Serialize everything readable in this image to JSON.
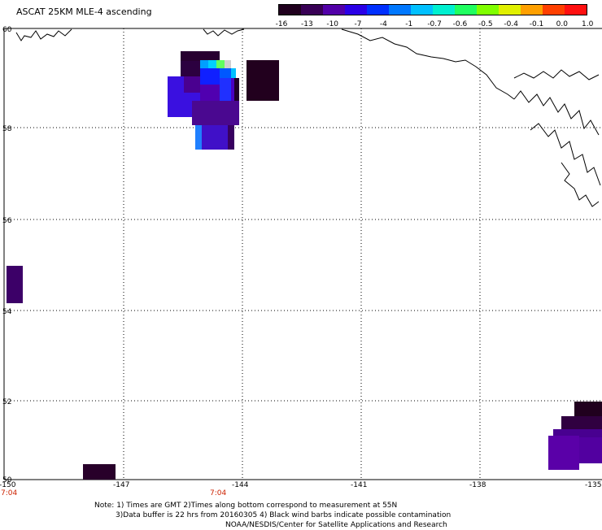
{
  "title": "ASCAT 25KM MLE-4 ascending",
  "colorbar": {
    "labels": [
      "-16",
      "-13",
      "-10",
      "-7",
      "-4",
      "-1",
      "-0.7",
      "-0.6",
      "-0.5",
      "-0.4",
      "-0.1",
      "0.0",
      "1.0"
    ],
    "colors": [
      "#20001e",
      "#380055",
      "#5200a8",
      "#2a00e6",
      "#0030ff",
      "#0078ff",
      "#00c0ff",
      "#00f0d0",
      "#20ff60",
      "#80ff00",
      "#e0f000",
      "#ffa000",
      "#ff4000",
      "#ff1010"
    ]
  },
  "map": {
    "lat_labels": [
      "60",
      "58",
      "56",
      "54",
      "52",
      "50"
    ],
    "lon_labels": [
      "-150",
      "-147",
      "-144",
      "-141",
      "-138",
      "-135"
    ],
    "time_labels": [
      "7:04",
      "7:04"
    ]
  },
  "notes": {
    "line1": "Note: 1) Times are GMT 2)Times along bottom correspond to measurement at 55N",
    "line2": "3)Data buffer is 22 hrs from 20160305 4) Black wind barbs indicate possible contamination",
    "line3": "NOAA/NESDIS/Center for Satellite Applications and Research"
  }
}
